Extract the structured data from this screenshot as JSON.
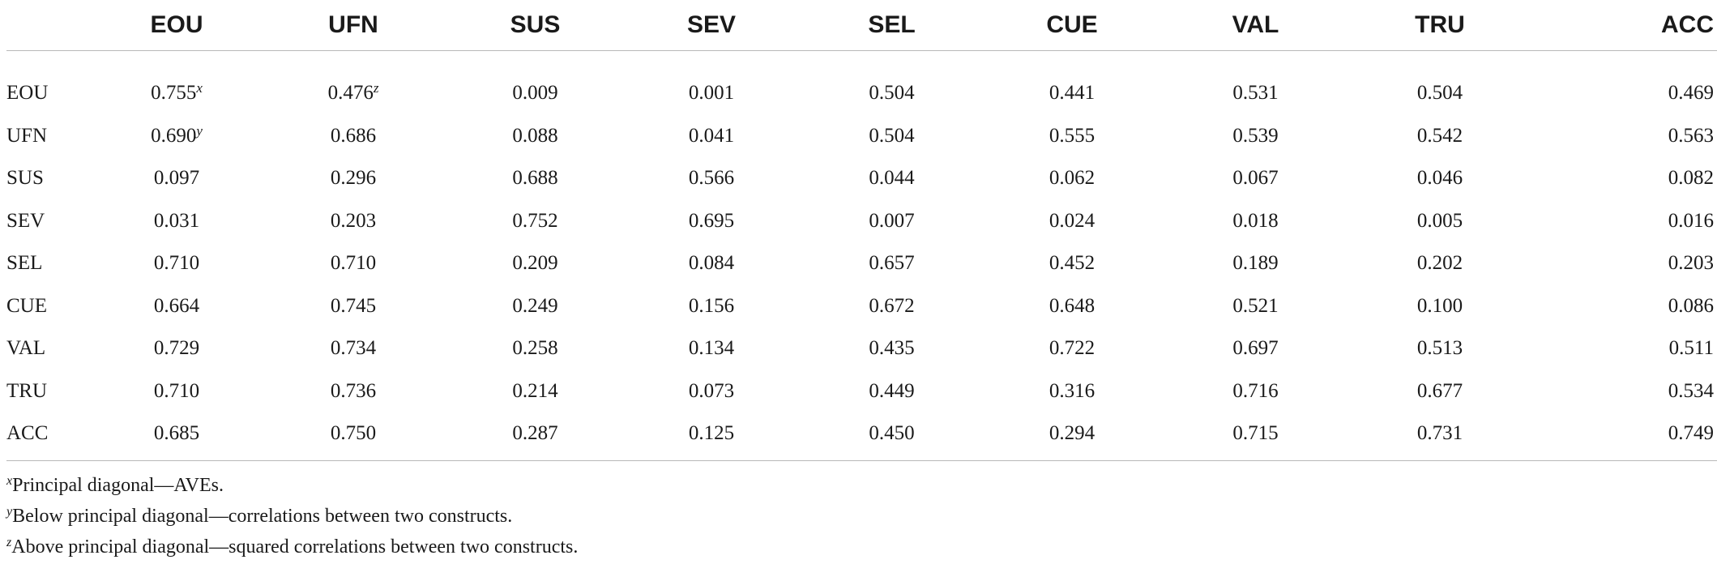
{
  "table": {
    "columns": [
      "EOU",
      "UFN",
      "SUS",
      "SEV",
      "SEL",
      "CUE",
      "VAL",
      "TRU",
      "ACC"
    ],
    "rows": [
      {
        "label": "EOU",
        "cells": [
          {
            "v": "0.755",
            "sup": "x"
          },
          {
            "v": "0.476",
            "sup": "z"
          },
          {
            "v": "0.009"
          },
          {
            "v": "0.001"
          },
          {
            "v": "0.504"
          },
          {
            "v": "0.441"
          },
          {
            "v": "0.531"
          },
          {
            "v": "0.504"
          },
          {
            "v": "0.469"
          }
        ]
      },
      {
        "label": "UFN",
        "cells": [
          {
            "v": "0.690",
            "sup": "y"
          },
          {
            "v": "0.686"
          },
          {
            "v": "0.088"
          },
          {
            "v": "0.041"
          },
          {
            "v": "0.504"
          },
          {
            "v": "0.555"
          },
          {
            "v": "0.539"
          },
          {
            "v": "0.542"
          },
          {
            "v": "0.563"
          }
        ]
      },
      {
        "label": "SUS",
        "cells": [
          {
            "v": "0.097"
          },
          {
            "v": "0.296"
          },
          {
            "v": "0.688"
          },
          {
            "v": "0.566"
          },
          {
            "v": "0.044"
          },
          {
            "v": "0.062"
          },
          {
            "v": "0.067"
          },
          {
            "v": "0.046"
          },
          {
            "v": "0.082"
          }
        ]
      },
      {
        "label": "SEV",
        "cells": [
          {
            "v": "0.031"
          },
          {
            "v": "0.203"
          },
          {
            "v": "0.752"
          },
          {
            "v": "0.695"
          },
          {
            "v": "0.007"
          },
          {
            "v": "0.024"
          },
          {
            "v": "0.018"
          },
          {
            "v": "0.005"
          },
          {
            "v": "0.016"
          }
        ]
      },
      {
        "label": "SEL",
        "cells": [
          {
            "v": "0.710"
          },
          {
            "v": "0.710"
          },
          {
            "v": "0.209"
          },
          {
            "v": "0.084"
          },
          {
            "v": "0.657"
          },
          {
            "v": "0.452"
          },
          {
            "v": "0.189"
          },
          {
            "v": "0.202"
          },
          {
            "v": "0.203"
          }
        ]
      },
      {
        "label": "CUE",
        "cells": [
          {
            "v": "0.664"
          },
          {
            "v": "0.745"
          },
          {
            "v": "0.249"
          },
          {
            "v": "0.156"
          },
          {
            "v": "0.672"
          },
          {
            "v": "0.648"
          },
          {
            "v": "0.521"
          },
          {
            "v": "0.100"
          },
          {
            "v": "0.086"
          }
        ]
      },
      {
        "label": "VAL",
        "cells": [
          {
            "v": "0.729"
          },
          {
            "v": "0.734"
          },
          {
            "v": "0.258"
          },
          {
            "v": "0.134"
          },
          {
            "v": "0.435"
          },
          {
            "v": "0.722"
          },
          {
            "v": "0.697"
          },
          {
            "v": "0.513"
          },
          {
            "v": "0.511"
          }
        ]
      },
      {
        "label": "TRU",
        "cells": [
          {
            "v": "0.710"
          },
          {
            "v": "0.736"
          },
          {
            "v": "0.214"
          },
          {
            "v": "0.073"
          },
          {
            "v": "0.449"
          },
          {
            "v": "0.316"
          },
          {
            "v": "0.716"
          },
          {
            "v": "0.677"
          },
          {
            "v": "0.534"
          }
        ]
      },
      {
        "label": "ACC",
        "cells": [
          {
            "v": "0.685"
          },
          {
            "v": "0.750"
          },
          {
            "v": "0.287"
          },
          {
            "v": "0.125"
          },
          {
            "v": "0.450"
          },
          {
            "v": "0.294"
          },
          {
            "v": "0.715"
          },
          {
            "v": "0.731"
          },
          {
            "v": "0.749"
          }
        ]
      }
    ]
  },
  "notes": [
    {
      "sup": "x",
      "text": "Principal diagonal—AVEs."
    },
    {
      "sup": "y",
      "text": "Below principal diagonal—correlations between two constructs."
    },
    {
      "sup": "z",
      "text": "Above principal diagonal—squared correlations between two constructs."
    }
  ]
}
